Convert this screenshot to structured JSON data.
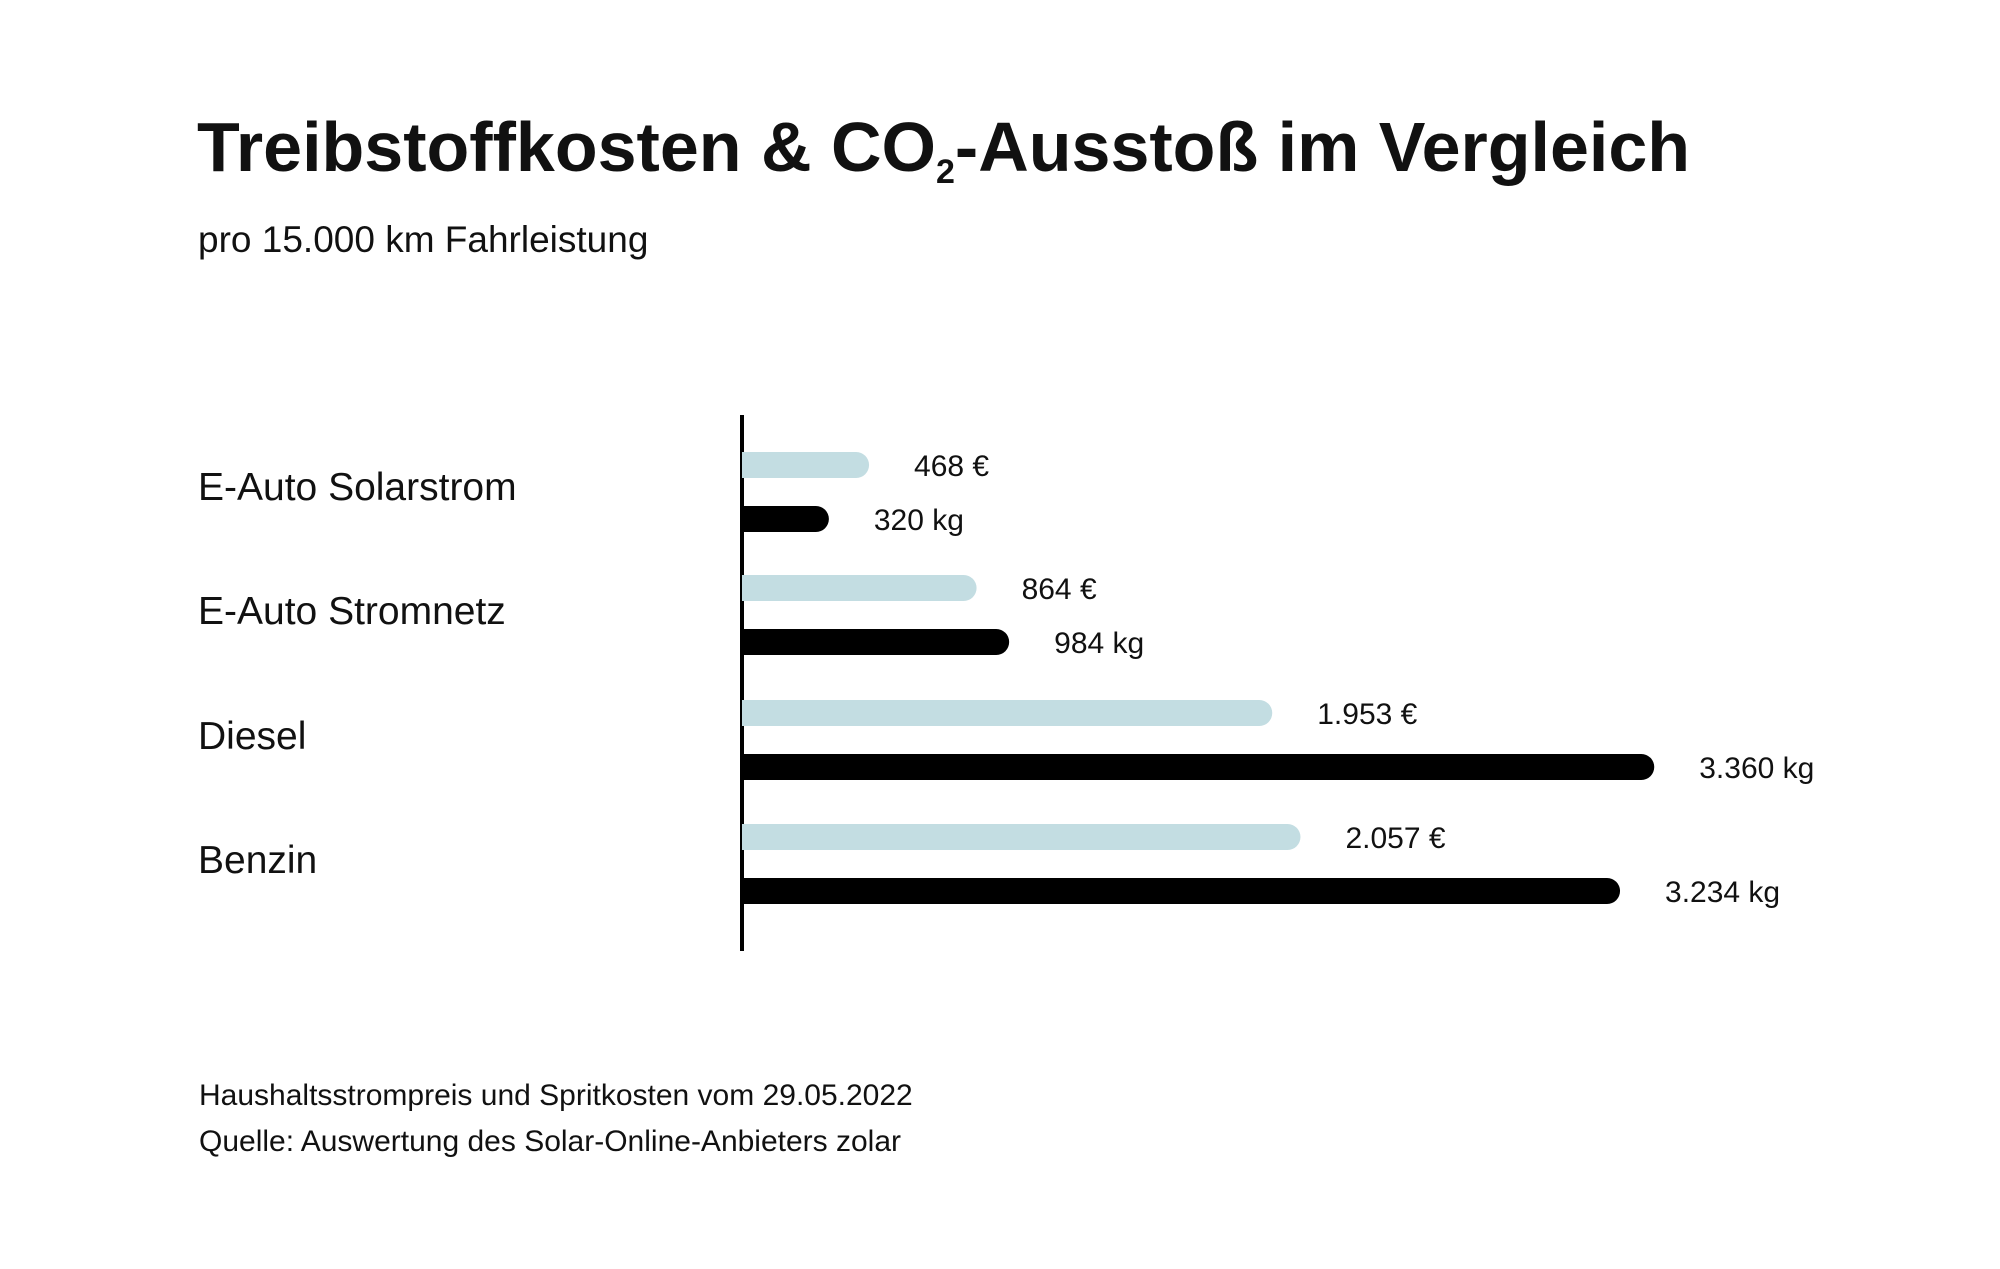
{
  "title": {
    "main_before": "Treibstoffkosten & CO",
    "main_sub": "2",
    "main_after": "-Ausstoß im Vergleich",
    "subtitle": "pro 15.000 km Fahrleistung"
  },
  "chart_data": {
    "type": "bar",
    "orientation": "horizontal",
    "categories": [
      "E-Auto Solarstrom",
      "E-Auto Stromnetz",
      "Diesel",
      "Benzin"
    ],
    "series": [
      {
        "values": [
          468,
          864,
          1953,
          2057
        ],
        "labels": [
          "468 €",
          "864 €",
          "1.953 €",
          "2.057 €"
        ],
        "color": "#c3dde2"
      },
      {
        "values": [
          320,
          984,
          3360,
          3234
        ],
        "labels": [
          "320 kg",
          "984 kg",
          "3.360 kg",
          "3.234 kg"
        ],
        "color": "#000000"
      }
    ],
    "grid": false,
    "legend": "none"
  },
  "footnotes": {
    "line1": "Haushaltsstrompreis und Spritkosten vom 29.05.2022",
    "line2": "Quelle: Auswertung des Solar-Online-Anbieters zolar"
  }
}
